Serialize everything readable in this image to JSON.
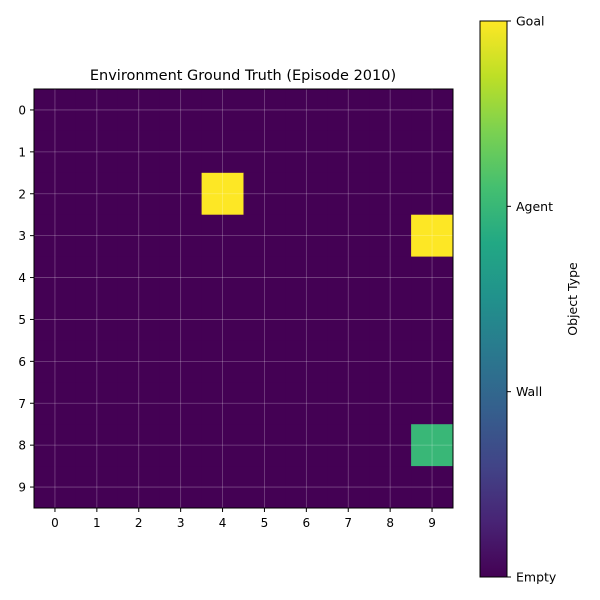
{
  "chart_data": {
    "type": "heatmap",
    "title": "Environment Ground Truth (Episode 2010)",
    "x_ticks": [
      "0",
      "1",
      "2",
      "3",
      "4",
      "5",
      "6",
      "7",
      "8",
      "9"
    ],
    "y_ticks": [
      "0",
      "1",
      "2",
      "3",
      "4",
      "5",
      "6",
      "7",
      "8",
      "9"
    ],
    "grid": true,
    "colormap": "viridis",
    "colorbar": {
      "label": "Object Type",
      "range": [
        0,
        3
      ],
      "ticks": [
        {
          "value": 0,
          "label": "Empty"
        },
        {
          "value": 1,
          "label": "Wall"
        },
        {
          "value": 2,
          "label": "Agent"
        },
        {
          "value": 3,
          "label": "Goal"
        }
      ]
    },
    "values": [
      [
        0,
        0,
        0,
        0,
        0,
        0,
        0,
        0,
        0,
        0
      ],
      [
        0,
        0,
        0,
        0,
        0,
        0,
        0,
        0,
        0,
        0
      ],
      [
        0,
        0,
        0,
        0,
        3,
        0,
        0,
        0,
        0,
        0
      ],
      [
        0,
        0,
        0,
        0,
        0,
        0,
        0,
        0,
        0,
        3
      ],
      [
        0,
        0,
        0,
        0,
        0,
        0,
        0,
        0,
        0,
        0
      ],
      [
        0,
        0,
        0,
        0,
        0,
        0,
        0,
        0,
        0,
        0
      ],
      [
        0,
        0,
        0,
        0,
        0,
        0,
        0,
        0,
        0,
        0
      ],
      [
        0,
        0,
        0,
        0,
        0,
        0,
        0,
        0,
        0,
        0
      ],
      [
        0,
        0,
        0,
        0,
        0,
        0,
        0,
        0,
        0,
        2
      ],
      [
        0,
        0,
        0,
        0,
        0,
        0,
        0,
        0,
        0,
        0
      ]
    ]
  }
}
